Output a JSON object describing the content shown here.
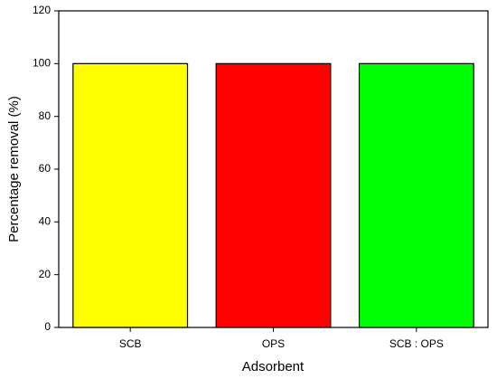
{
  "chart_data": {
    "type": "bar",
    "x_label": "Adsorbent",
    "y_label": "Percentage removal (%)",
    "categories": [
      "SCB",
      "OPS",
      "SCB : OPS"
    ],
    "values": [
      100,
      100,
      100
    ],
    "colors": [
      "#ffff00",
      "#ff0000",
      "#00ff00"
    ],
    "ylim": [
      0,
      120
    ],
    "yticks": [
      0,
      20,
      40,
      60,
      80,
      100,
      120
    ]
  }
}
